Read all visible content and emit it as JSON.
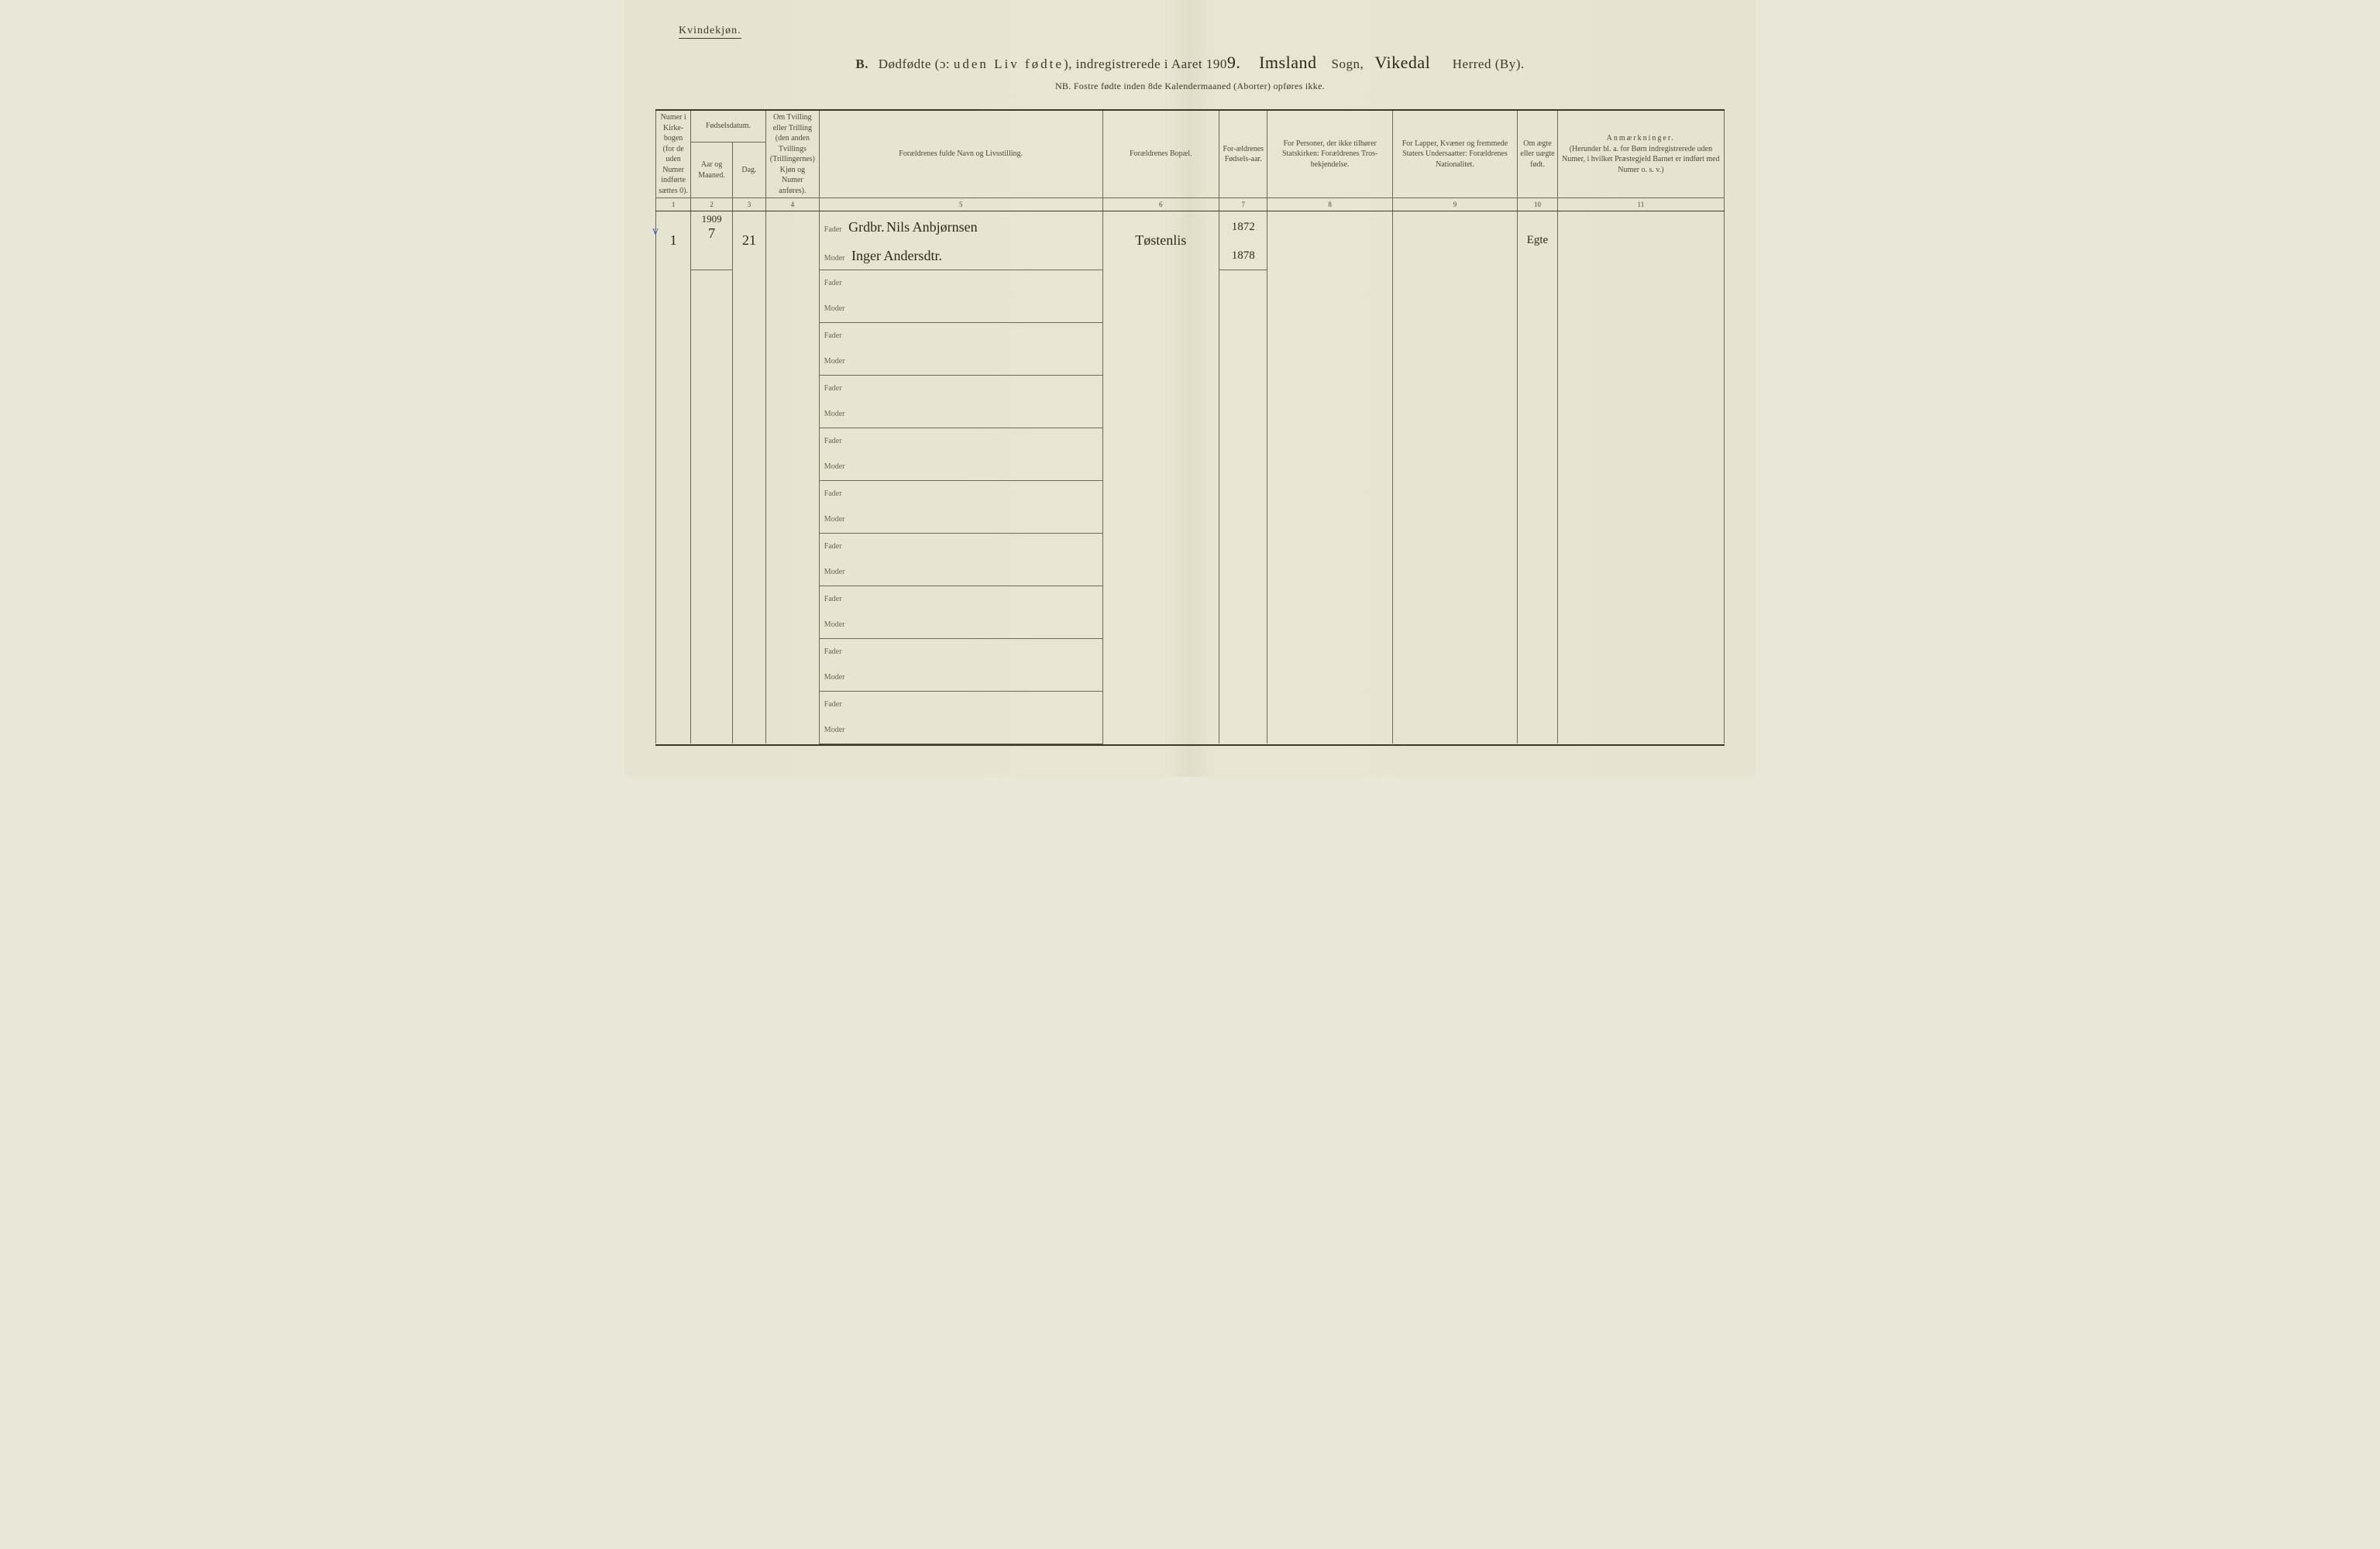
{
  "corner_label": "Kvindekjøn.",
  "title": {
    "letter": "B.",
    "part1": "Dødfødte (ɔ:",
    "spaced": "uden Liv fødte",
    "part2": "), indregistrerede i Aaret 190",
    "year_suffix_hand": "9.",
    "sogn_hand": "Imsland",
    "sogn_label": "Sogn,",
    "herred_hand": "Vikedal",
    "herred_label": "Herred (By)."
  },
  "sub_line": "NB.  Fostre fødte inden 8de Kalendermaaned (Aborter) opføres ikke.",
  "headers": {
    "c1": "Numer i Kirke-bogen (for de uden Numer indførte sættes 0).",
    "c_date_group": "Fødselsdatum.",
    "c2": "Aar og Maaned.",
    "c3": "Dag.",
    "c4": "Om Tvilling eller Trilling (den anden Tvillings (Trillingernes) Kjøn og Numer anføres).",
    "c5": "Forældrenes fulde Navn og Livsstilling.",
    "c6": "Forældrenes Bopæl.",
    "c7": "For-ældrenes Fødsels-aar.",
    "c8": "For Personer, der ikke tilhører Statskirken: Forældrenes Tros-bekjendelse.",
    "c9": "For Lapper, Kvæner og fremmede Staters Undersaatter: Forældrenes Nationalitet.",
    "c10": "Om ægte eller uægte født.",
    "c11_title": "Anmærkninger.",
    "c11_sub": "(Herunder bl. a. for Børn indregistrerede uden Numer, i hvilket Præstegjeld Barnet er indført med Numer o. s. v.)"
  },
  "col_nums": [
    "1",
    "2",
    "3",
    "4",
    "5",
    "6",
    "7",
    "8",
    "9",
    "10",
    "11"
  ],
  "labels": {
    "fader": "Fader",
    "moder": "Moder"
  },
  "row1": {
    "num": "1",
    "year_top": "1909",
    "month": "7",
    "day": "21",
    "fader_occ": "Grdbr.",
    "fader_name": "Nils Anbjørnsen",
    "moder_name": "Inger Andersdtr.",
    "bopael": "Tøstenlis",
    "fader_year": "1872",
    "moder_year": "1878",
    "legit": "Egte"
  },
  "margin_note": "v",
  "colors": {
    "paper": "#e6e4d0",
    "line": "#6a6a55",
    "heavy_line": "#3a3a2a",
    "ink": "#2a2a1a",
    "blue_ink": "#3b5bd0"
  },
  "blank_rows": 9
}
